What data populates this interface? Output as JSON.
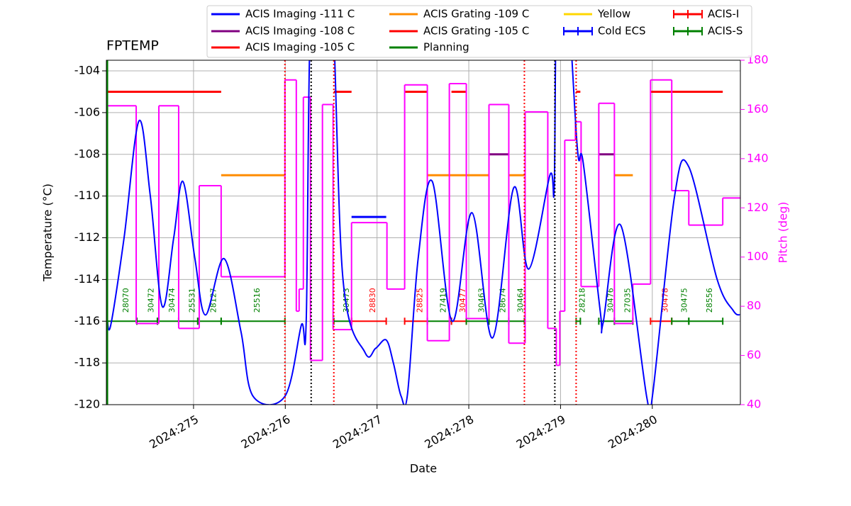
{
  "chart_data": {
    "type": "line",
    "title": "FPTEMP",
    "xlabel": "Date",
    "ylabel": "Temperature (°C)",
    "y2label": "Pitch (deg)",
    "xlim": [
      274.05,
      280.96
    ],
    "xticks": [
      {
        "value": 275,
        "label": "2024:275"
      },
      {
        "value": 276,
        "label": "2024:276"
      },
      {
        "value": 277,
        "label": "2024:277"
      },
      {
        "value": 278,
        "label": "2024:278"
      },
      {
        "value": 279,
        "label": "2024:279"
      },
      {
        "value": 280,
        "label": "2024:280"
      }
    ],
    "ylim": [
      -120,
      -103.49
    ],
    "yticks": [
      -120,
      -118,
      -116,
      -114,
      -112,
      -110,
      -108,
      -106,
      -104
    ],
    "y2lim": [
      40,
      180
    ],
    "y2ticks": [
      40,
      60,
      80,
      100,
      120,
      140,
      160,
      180
    ],
    "y2color": "#ff00ff",
    "grid": true,
    "legend": "top",
    "temperature": {
      "color": "#0000ff",
      "x": [
        274.058,
        274.097,
        274.243,
        274.405,
        274.529,
        274.66,
        274.784,
        274.884,
        275.015,
        275.131,
        275.332,
        275.517,
        275.649,
        275.996,
        276.174,
        276.228,
        276.29,
        276.498,
        276.629,
        276.869,
        276.985,
        277.1,
        277.178,
        277.263,
        277.332,
        277.448,
        277.602,
        277.819,
        278.035,
        278.259,
        278.49,
        278.653,
        278.884,
        278.931,
        278.961,
        279.069,
        279.185,
        279.247,
        279.432,
        279.463,
        279.656,
        279.942,
        280.004,
        280.243,
        280.398,
        280.707,
        280.884,
        280.954
      ],
      "values": [
        -115.8,
        -116.2,
        -112,
        -106.4,
        -110,
        -115.3,
        -112,
        -109.3,
        -113,
        -115.7,
        -113,
        -116.5,
        -119.6,
        -119.6,
        -116.2,
        -116,
        -100,
        -100,
        -114,
        -117.5,
        -117.3,
        -116.9,
        -118,
        -119.6,
        -119.5,
        -113,
        -109.3,
        -116,
        -110.8,
        -116.8,
        -109.6,
        -113.5,
        -109,
        -109.6,
        -100,
        -100,
        -107.8,
        -108.4,
        -115.5,
        -116.1,
        -111.4,
        -119.7,
        -119.5,
        -110,
        -108.6,
        -114,
        -115.5,
        -115.7
      ]
    },
    "pitch": {
      "color": "#ff00ff",
      "axis": "y2",
      "step": "post",
      "x": [
        274.058,
        274.375,
        274.622,
        274.838,
        275.062,
        275.301,
        275.996,
        276.12,
        276.151,
        276.197,
        276.274,
        276.405,
        276.521,
        276.722,
        277.108,
        277.301,
        277.548,
        277.788,
        277.973,
        278.22,
        278.436,
        278.614,
        278.861,
        278.954,
        278.992,
        279.046,
        279.162,
        279.224,
        279.417,
        279.587,
        279.788,
        279.981,
        280.212,
        280.398,
        280.768
      ],
      "values": [
        161.5,
        73,
        161.5,
        71,
        129,
        92,
        172,
        78,
        87,
        165,
        58,
        162,
        70.5,
        114,
        87,
        170,
        66,
        170.5,
        75,
        162,
        65,
        159,
        71,
        56,
        78,
        147.5,
        155,
        88,
        162.5,
        73,
        89,
        172,
        127,
        113,
        124
      ]
    },
    "series": [
      {
        "name": "ACIS Imaging -111 C",
        "color": "#0000ff",
        "style": "line",
        "value": -111,
        "segments": [
          [
            276.722,
            277.1
          ]
        ]
      },
      {
        "name": "ACIS Imaging -108 C",
        "color": "#800080",
        "style": "line",
        "value": -108,
        "segments": [
          [
            278.22,
            278.436
          ],
          [
            279.417,
            279.587
          ]
        ]
      },
      {
        "name": "ACIS Imaging -105 C",
        "color": "#ff0000",
        "style": "line",
        "value": -105,
        "segments": [
          [
            274.058,
            275.301
          ],
          [
            276.529,
            276.722
          ],
          [
            277.301,
            277.548
          ],
          [
            277.811,
            277.973
          ],
          [
            279.17,
            279.216
          ],
          [
            279.981,
            280.768
          ]
        ]
      },
      {
        "name": "ACIS Grating -109 C",
        "color": "#ff8c00",
        "style": "line",
        "value": -109,
        "segments": [
          [
            275.301,
            275.996
          ],
          [
            277.548,
            278.22
          ],
          [
            278.436,
            278.606
          ],
          [
            279.587,
            279.788
          ]
        ]
      },
      {
        "name": "ACIS Grating -105 C",
        "color": "#ff0000",
        "style": "line",
        "segments": []
      },
      {
        "name": "Planning",
        "color": "#008000",
        "style": "line",
        "segments": []
      },
      {
        "name": "Yellow",
        "color": "#ffd700",
        "style": "line",
        "segments": []
      },
      {
        "name": "Cold ECS",
        "color": "#0000ff",
        "style": "errorbar",
        "segments": []
      },
      {
        "name": "ACIS-I",
        "color": "#ff0000",
        "style": "errorbar"
      },
      {
        "name": "ACIS-S",
        "color": "#008000",
        "style": "errorbar"
      }
    ],
    "vlines": [
      {
        "x": 274.058,
        "color": "#008000",
        "style": "solid"
      },
      {
        "x": 275.996,
        "color": "#ff0000",
        "style": "dotted"
      },
      {
        "x": 276.282,
        "color": "#000000",
        "style": "dotted"
      },
      {
        "x": 276.529,
        "color": "#ff0000",
        "style": "dotted"
      },
      {
        "x": 278.606,
        "color": "#ff0000",
        "style": "dotted"
      },
      {
        "x": 278.938,
        "color": "#000000",
        "style": "dotted"
      },
      {
        "x": 279.17,
        "color": "#ff0000",
        "style": "dotted"
      }
    ],
    "obsid_level": -116,
    "obsids": [
      {
        "label": "28070",
        "start": 274.058,
        "end": 274.382,
        "instrument": "ACIS-S"
      },
      {
        "label": "30472",
        "start": 274.382,
        "end": 274.606,
        "instrument": "ACIS-S"
      },
      {
        "label": "30474",
        "start": 274.606,
        "end": 274.838,
        "instrument": "ACIS-S"
      },
      {
        "label": "25531",
        "start": 274.838,
        "end": 275.046,
        "instrument": "ACIS-S"
      },
      {
        "label": "28127",
        "start": 275.046,
        "end": 275.301,
        "instrument": "ACIS-S"
      },
      {
        "label": "25516",
        "start": 275.301,
        "end": 275.996,
        "instrument": "ACIS-S"
      },
      {
        "label": "30473",
        "start": 276.529,
        "end": 276.722,
        "instrument": "ACIS-S"
      },
      {
        "label": "28830",
        "start": 276.722,
        "end": 277.1,
        "instrument": "ACIS-I"
      },
      {
        "label": "28825",
        "start": 277.301,
        "end": 277.548,
        "instrument": "ACIS-I"
      },
      {
        "label": "27419",
        "start": 277.548,
        "end": 277.811,
        "instrument": "ACIS-S"
      },
      {
        "label": "30477",
        "start": 277.811,
        "end": 277.973,
        "instrument": "ACIS-I"
      },
      {
        "label": "30463",
        "start": 277.973,
        "end": 278.22,
        "instrument": "ACIS-S"
      },
      {
        "label": "28674",
        "start": 278.22,
        "end": 278.436,
        "instrument": "ACIS-S"
      },
      {
        "label": "30464",
        "start": 278.436,
        "end": 278.606,
        "instrument": "ACIS-S"
      },
      {
        "label": "28218",
        "start": 279.17,
        "end": 279.216,
        "instrument": "ACIS-S"
      },
      {
        "label": "30476",
        "start": 279.417,
        "end": 279.587,
        "instrument": "ACIS-S"
      },
      {
        "label": "27035",
        "start": 279.587,
        "end": 279.788,
        "instrument": "ACIS-S"
      },
      {
        "label": "30478",
        "start": 279.981,
        "end": 280.212,
        "instrument": "ACIS-I"
      },
      {
        "label": "30475",
        "start": 280.212,
        "end": 280.398,
        "instrument": "ACIS-S"
      },
      {
        "label": "28556",
        "start": 280.398,
        "end": 280.768,
        "instrument": "ACIS-S"
      }
    ]
  }
}
